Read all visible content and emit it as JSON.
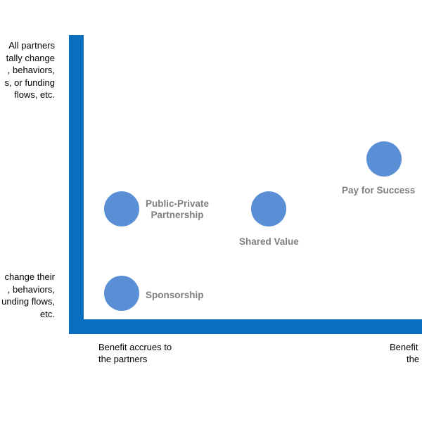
{
  "y_axis": {
    "top_label": [
      "All partners",
      "tally change",
      ", behaviors,",
      "s, or funding",
      "flows, etc."
    ],
    "bottom_label": [
      "change their",
      ", behaviors,",
      "unding flows,",
      "etc."
    ]
  },
  "x_axis": {
    "left_label": [
      "Benefit accrues to",
      "the partners"
    ],
    "right_label": [
      "Benefit",
      "the"
    ]
  },
  "models": [
    {
      "name": "Public-Private Partnership",
      "label_lines": [
        "Public-Private",
        "Partnership"
      ]
    },
    {
      "name": "Shared Value",
      "label_lines": [
        "Shared Value"
      ]
    },
    {
      "name": "Pay for Success",
      "label_lines": [
        "Pay for Success"
      ]
    },
    {
      "name": "Sponsorship",
      "label_lines": [
        "Sponsorship"
      ]
    }
  ],
  "colors": {
    "axis": "#0a6fc1",
    "dot": "#5a8fd6",
    "dot_label": "#7f7f7f"
  }
}
